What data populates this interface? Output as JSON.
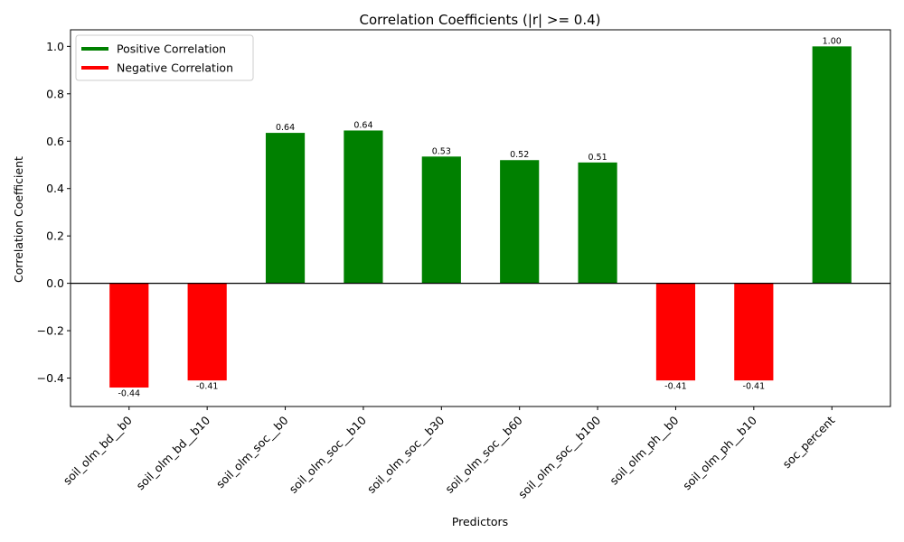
{
  "chart_data": {
    "type": "bar",
    "title": "Correlation Coefficients (|r| >= 0.4)",
    "xlabel": "Predictors",
    "ylabel": "Correlation Coefficient",
    "categories": [
      "soil_olm_bd__b0",
      "soil_olm_bd__b10",
      "soil_olm_soc__b0",
      "soil_olm_soc__b10",
      "soil_olm_soc__b30",
      "soil_olm_soc__b60",
      "soil_olm_soc__b100",
      "soil_olm_ph__b0",
      "soil_olm_ph__b10",
      "soc_percent"
    ],
    "values": [
      -0.44,
      -0.41,
      0.635,
      0.645,
      0.535,
      0.52,
      0.51,
      -0.41,
      -0.41,
      1.0
    ],
    "value_labels": [
      "-0.44",
      "-0.41",
      "0.64",
      "0.64",
      "0.53",
      "0.52",
      "0.51",
      "-0.41",
      "-0.41",
      "1.00"
    ],
    "ylim": [
      -0.52,
      1.07
    ],
    "yticks": [
      -0.4,
      -0.2,
      0.0,
      0.2,
      0.4,
      0.6,
      0.8,
      1.0
    ],
    "ytick_labels": [
      "−0.4",
      "−0.2",
      "0.0",
      "0.2",
      "0.4",
      "0.6",
      "0.8",
      "1.0"
    ],
    "grid": false,
    "zero_line": true,
    "legend": {
      "position": "top-left",
      "entries": [
        {
          "label": "Positive Correlation",
          "color": "#008000"
        },
        {
          "label": "Negative Correlation",
          "color": "#ff0000"
        }
      ]
    },
    "colors": {
      "positive": "#008000",
      "negative": "#ff0000"
    }
  }
}
